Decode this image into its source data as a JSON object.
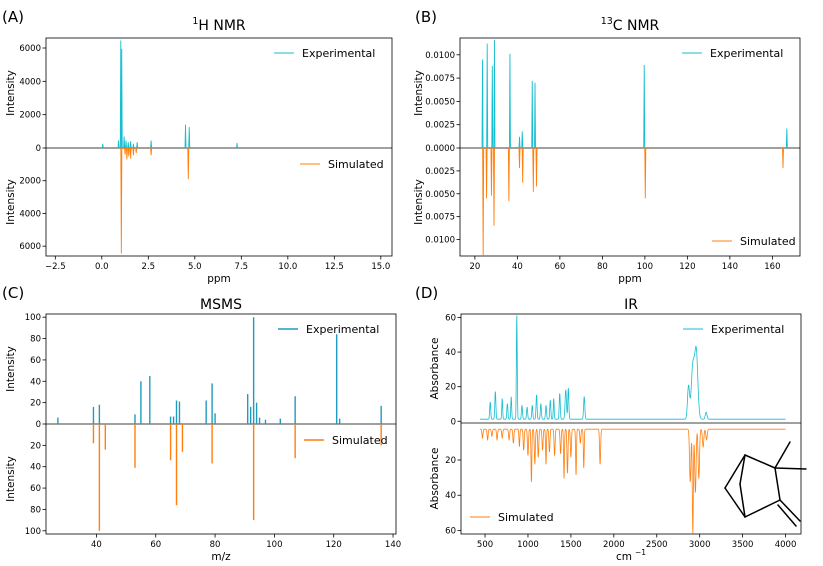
{
  "colors": {
    "experimental": "#17becf",
    "simulated": "#ff7f0e",
    "mark_exp": "#1f9bbf"
  },
  "chart_data": [
    {
      "panel": "(A)",
      "type": "line",
      "title_prefix": "1",
      "title_suffix": "H NMR",
      "xlabel": "ppm",
      "ylabel_top": "Intensity",
      "ylabel_bottom": "Intensity",
      "xlim": [
        -3,
        15.6
      ],
      "ylim_top": [
        0,
        6600
      ],
      "ylim_bottom": [
        0,
        6600
      ],
      "xticks": [
        "−2.5",
        "0.0",
        "2.5",
        "5.0",
        "7.5",
        "10.0",
        "12.5",
        "15.0"
      ],
      "xtick_values": [
        -2.5,
        0,
        2.5,
        5,
        7.5,
        10,
        12.5,
        15
      ],
      "yticks_top": [
        "0",
        "2000",
        "4000",
        "6000"
      ],
      "ytick_values_top": [
        0,
        2000,
        4000,
        6000
      ],
      "yticks_bottom": [
        "2000",
        "4000",
        "6000"
      ],
      "ytick_values_bottom": [
        2000,
        4000,
        6000
      ],
      "series": [
        {
          "name": "Experimental",
          "legend": "top-right",
          "peaks": [
            [
              0.05,
              250
            ],
            [
              0.9,
              450
            ],
            [
              1.02,
              6450
            ],
            [
              1.07,
              5950
            ],
            [
              1.2,
              700
            ],
            [
              1.3,
              450
            ],
            [
              1.42,
              350
            ],
            [
              1.55,
              400
            ],
            [
              1.7,
              250
            ],
            [
              1.9,
              350
            ],
            [
              2.65,
              450
            ],
            [
              4.5,
              1400
            ],
            [
              4.7,
              1250
            ],
            [
              7.27,
              300
            ]
          ]
        },
        {
          "name": "Simulated",
          "legend": "right",
          "peaks": [
            [
              1.05,
              6450
            ],
            [
              1.25,
              400
            ],
            [
              1.35,
              700
            ],
            [
              1.45,
              500
            ],
            [
              1.55,
              650
            ],
            [
              1.7,
              450
            ],
            [
              1.85,
              300
            ],
            [
              2.65,
              450
            ],
            [
              4.65,
              1900
            ]
          ]
        }
      ]
    },
    {
      "panel": "(B)",
      "type": "line",
      "title_prefix": "13",
      "title_suffix": "C NMR",
      "xlabel": "ppm",
      "ylabel_top": "Intensity",
      "ylabel_bottom": "Intensity",
      "xlim": [
        13,
        173
      ],
      "ylim_top": [
        0,
        0.0118
      ],
      "ylim_bottom": [
        0,
        0.0118
      ],
      "xticks": [
        "20",
        "40",
        "60",
        "80",
        "100",
        "120",
        "140",
        "160"
      ],
      "xtick_values": [
        20,
        40,
        60,
        80,
        100,
        120,
        140,
        160
      ],
      "yticks_top": [
        "0.0000",
        "0.0025",
        "0.0050",
        "0.0075",
        "0.0100"
      ],
      "ytick_values_top": [
        0,
        0.0025,
        0.005,
        0.0075,
        0.01
      ],
      "yticks_bottom": [
        "0.0025",
        "0.0050",
        "0.0075",
        "0.0100"
      ],
      "ytick_values_bottom": [
        0.0025,
        0.005,
        0.0075,
        0.01
      ],
      "series": [
        {
          "name": "Experimental",
          "legend": "top-right",
          "peaks": [
            [
              23.6,
              0.0095
            ],
            [
              25.8,
              0.0112
            ],
            [
              28.2,
              0.0088
            ],
            [
              29.2,
              0.0116
            ],
            [
              36.5,
              0.0101
            ],
            [
              41.0,
              0.0012
            ],
            [
              42.3,
              0.0018
            ],
            [
              47.0,
              0.0072
            ],
            [
              48.3,
              0.007
            ],
            [
              99.7,
              0.0089
            ],
            [
              166.8,
              0.0021
            ]
          ]
        },
        {
          "name": "Simulated",
          "legend": "bottom-right",
          "peaks": [
            [
              23.9,
              0.0118
            ],
            [
              25.5,
              0.0055
            ],
            [
              27.8,
              0.0052
            ],
            [
              29.0,
              0.0085
            ],
            [
              36.0,
              0.0058
            ],
            [
              41.0,
              0.0022
            ],
            [
              42.5,
              0.0038
            ],
            [
              47.5,
              0.0048
            ],
            [
              49.0,
              0.0042
            ],
            [
              100.2,
              0.0055
            ],
            [
              165.0,
              0.0022
            ]
          ]
        }
      ]
    },
    {
      "panel": "(C)",
      "type": "bar",
      "title": "MSMS",
      "xlabel": "m/z",
      "ylabel_top": "Intensity",
      "ylabel_bottom": "Intensity",
      "xlim": [
        23,
        141
      ],
      "ylim_top": [
        0,
        103
      ],
      "ylim_bottom": [
        0,
        103
      ],
      "xticks": [
        "40",
        "60",
        "80",
        "100",
        "120",
        "140"
      ],
      "xtick_values": [
        40,
        60,
        80,
        100,
        120,
        140
      ],
      "yticks_top": [
        "0",
        "20",
        "40",
        "60",
        "80",
        "100"
      ],
      "ytick_values_top": [
        0,
        20,
        40,
        60,
        80,
        100
      ],
      "yticks_bottom": [
        "20",
        "40",
        "60",
        "80",
        "100"
      ],
      "ytick_values_bottom": [
        20,
        40,
        60,
        80,
        100
      ],
      "series": [
        {
          "name": "Experimental",
          "legend": "top-right",
          "peaks": [
            [
              27,
              6
            ],
            [
              39,
              16
            ],
            [
              41,
              18
            ],
            [
              53,
              9
            ],
            [
              55,
              40
            ],
            [
              58,
              45
            ],
            [
              65,
              7
            ],
            [
              66,
              7
            ],
            [
              67,
              22
            ],
            [
              68,
              21
            ],
            [
              77,
              22
            ],
            [
              79,
              38
            ],
            [
              80,
              10
            ],
            [
              91,
              28
            ],
            [
              92,
              16
            ],
            [
              93,
              100
            ],
            [
              94,
              20
            ],
            [
              95,
              6
            ],
            [
              97,
              4
            ],
            [
              102,
              5
            ],
            [
              107,
              26
            ],
            [
              121,
              84
            ],
            [
              122,
              5
            ],
            [
              136,
              17
            ]
          ]
        },
        {
          "name": "Simulated",
          "legend": "right",
          "peaks": [
            [
              39,
              18
            ],
            [
              41,
              100
            ],
            [
              43,
              24
            ],
            [
              53,
              41
            ],
            [
              65,
              34
            ],
            [
              67,
              76
            ],
            [
              69,
              26
            ],
            [
              79,
              37
            ],
            [
              93,
              90
            ],
            [
              107,
              32
            ],
            [
              136,
              20
            ]
          ]
        }
      ]
    },
    {
      "panel": "(D)",
      "type": "line",
      "title": "IR",
      "xlabel": "cm",
      "xlabel_exp": "−1",
      "ylabel_top": "Absorbance",
      "ylabel_bottom": "Absorbance",
      "xlim": [
        220,
        4180
      ],
      "ylim_top": [
        -1,
        62
      ],
      "ylim_bottom": [
        -1,
        62
      ],
      "xticks": [
        "500",
        "1000",
        "1500",
        "2000",
        "2500",
        "3000",
        "3500",
        "4000"
      ],
      "xtick_values": [
        500,
        1000,
        1500,
        2000,
        2500,
        3000,
        3500,
        4000
      ],
      "yticks_top": [
        "0",
        "20",
        "40",
        "60"
      ],
      "ytick_values_top": [
        0,
        20,
        40,
        60
      ],
      "yticks_bottom": [
        "20",
        "40",
        "60"
      ],
      "ytick_values_bottom": [
        20,
        40,
        60
      ],
      "series": [
        {
          "name": "Experimental",
          "legend": "top-right",
          "baseline": 1.2,
          "range": [
            440,
            4000
          ],
          "peaks": [
            [
              560,
              10,
              6
            ],
            [
              620,
              16,
              6
            ],
            [
              700,
              12,
              5
            ],
            [
              760,
              9,
              6
            ],
            [
              805,
              13,
              5
            ],
            [
              870,
              60,
              5
            ],
            [
              930,
              8,
              6
            ],
            [
              990,
              7,
              6
            ],
            [
              1050,
              8,
              6
            ],
            [
              1100,
              14,
              6
            ],
            [
              1150,
              9,
              6
            ],
            [
              1210,
              8,
              6
            ],
            [
              1260,
              11,
              6
            ],
            [
              1300,
              12,
              5
            ],
            [
              1370,
              15,
              6
            ],
            [
              1440,
              17,
              8
            ],
            [
              1470,
              18,
              6
            ],
            [
              1655,
              13,
              7
            ],
            [
              2870,
              19,
              12
            ],
            [
              2920,
              30,
              18
            ],
            [
              2960,
              39,
              18
            ],
            [
              3075,
              4,
              10
            ]
          ]
        },
        {
          "name": "Simulated",
          "legend": "bottom-left",
          "baseline": 2.5,
          "range": [
            440,
            4000
          ],
          "peaks": [
            [
              470,
              5,
              6
            ],
            [
              530,
              6,
              6
            ],
            [
              580,
              4,
              6
            ],
            [
              640,
              6,
              6
            ],
            [
              700,
              5,
              6
            ],
            [
              780,
              6,
              6
            ],
            [
              830,
              8,
              6
            ],
            [
              900,
              10,
              5
            ],
            [
              950,
              12,
              6
            ],
            [
              1000,
              15,
              6
            ],
            [
              1040,
              30,
              5
            ],
            [
              1080,
              20,
              6
            ],
            [
              1120,
              16,
              6
            ],
            [
              1170,
              12,
              6
            ],
            [
              1210,
              20,
              5
            ],
            [
              1250,
              13,
              6
            ],
            [
              1310,
              15,
              6
            ],
            [
              1380,
              14,
              6
            ],
            [
              1420,
              28,
              5
            ],
            [
              1460,
              25,
              6
            ],
            [
              1500,
              16,
              6
            ],
            [
              1560,
              26,
              5
            ],
            [
              1610,
              8,
              6
            ],
            [
              1650,
              22,
              5
            ],
            [
              1840,
              20,
              6
            ],
            [
              2890,
              30,
              8
            ],
            [
              2920,
              59,
              6
            ],
            [
              2950,
              36,
              8
            ],
            [
              2990,
              28,
              8
            ],
            [
              3040,
              10,
              8
            ],
            [
              3080,
              6,
              8
            ]
          ]
        }
      ]
    }
  ]
}
